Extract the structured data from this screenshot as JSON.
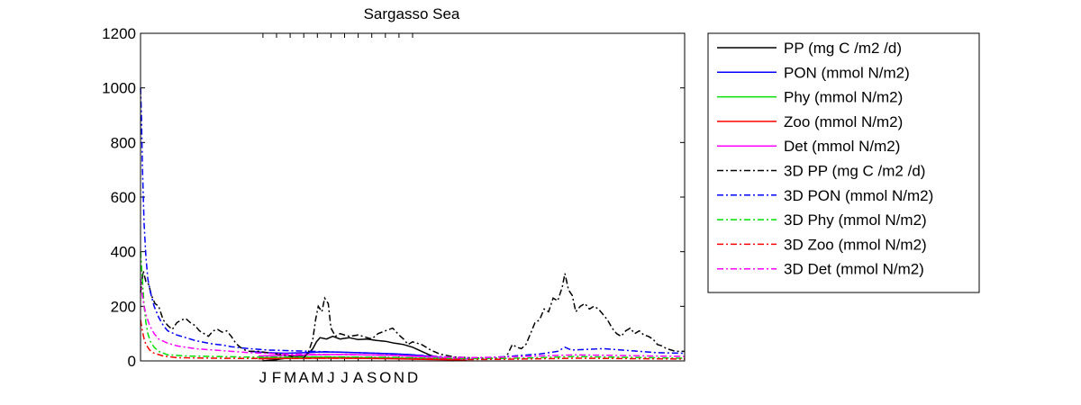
{
  "chart_data": {
    "type": "line",
    "title": "Sargasso Sea",
    "xlabel": "",
    "ylabel": "",
    "ylim": [
      0,
      1200
    ],
    "yticks": [
      0,
      200,
      400,
      600,
      800,
      1000,
      1200
    ],
    "xlim": [
      0,
      600
    ],
    "month_tick_labels": [
      "J",
      "F",
      "M",
      "A",
      "M",
      "J",
      "J",
      "A",
      "S",
      "O",
      "N",
      "D"
    ],
    "month_tick_x": [
      135,
      150,
      165,
      180,
      195,
      210,
      225,
      240,
      255,
      270,
      285,
      300
    ],
    "grid": false,
    "legend_position": "outside-right",
    "series": [
      {
        "name": "PP (mg C /m2 /d)",
        "color": "#000000",
        "dash": "solid",
        "points": [
          [
            135,
            0
          ],
          [
            150,
            5
          ],
          [
            165,
            12
          ],
          [
            180,
            20
          ],
          [
            186,
            30
          ],
          [
            190,
            45
          ],
          [
            194,
            70
          ],
          [
            198,
            85
          ],
          [
            205,
            80
          ],
          [
            212,
            90
          ],
          [
            220,
            80
          ],
          [
            230,
            85
          ],
          [
            240,
            78
          ],
          [
            250,
            80
          ],
          [
            260,
            75
          ],
          [
            270,
            72
          ],
          [
            280,
            65
          ],
          [
            290,
            60
          ],
          [
            300,
            50
          ],
          [
            310,
            35
          ],
          [
            320,
            20
          ],
          [
            330,
            10
          ],
          [
            345,
            0
          ]
        ]
      },
      {
        "name": "PON (mmol N/m2)",
        "color": "#0000FF",
        "dash": "solid",
        "points": [
          [
            120,
            35
          ],
          [
            140,
            30
          ],
          [
            160,
            28
          ],
          [
            180,
            30
          ],
          [
            200,
            33
          ],
          [
            220,
            32
          ],
          [
            240,
            30
          ],
          [
            260,
            28
          ],
          [
            280,
            26
          ],
          [
            300,
            22
          ],
          [
            320,
            16
          ],
          [
            340,
            10
          ],
          [
            360,
            5
          ]
        ]
      },
      {
        "name": "Phy (mmol N/m2)",
        "color": "#00E000",
        "dash": "solid",
        "points": [
          [
            130,
            12
          ],
          [
            160,
            12
          ],
          [
            190,
            14
          ],
          [
            220,
            13
          ],
          [
            250,
            12
          ],
          [
            280,
            11
          ],
          [
            310,
            9
          ],
          [
            340,
            6
          ],
          [
            360,
            4
          ]
        ]
      },
      {
        "name": "Zoo (mmol N/m2)",
        "color": "#FF0000",
        "dash": "solid",
        "points": [
          [
            130,
            8
          ],
          [
            160,
            9
          ],
          [
            190,
            10
          ],
          [
            220,
            10
          ],
          [
            250,
            9
          ],
          [
            280,
            8
          ],
          [
            310,
            6
          ],
          [
            340,
            4
          ],
          [
            360,
            2
          ]
        ]
      },
      {
        "name": "Det (mmol N/m2)",
        "color": "#FF00FF",
        "dash": "solid",
        "points": [
          [
            130,
            18
          ],
          [
            160,
            20
          ],
          [
            190,
            22
          ],
          [
            220,
            24
          ],
          [
            250,
            22
          ],
          [
            280,
            20
          ],
          [
            310,
            15
          ],
          [
            340,
            10
          ],
          [
            360,
            6
          ]
        ]
      },
      {
        "name": "3D PP (mg C /m2 /d)",
        "color": "#000000",
        "dash": "dashdot",
        "points": [
          [
            0,
            250
          ],
          [
            3,
            330
          ],
          [
            6,
            290
          ],
          [
            9,
            280
          ],
          [
            12,
            240
          ],
          [
            16,
            210
          ],
          [
            20,
            200
          ],
          [
            25,
            150
          ],
          [
            30,
            130
          ],
          [
            35,
            115
          ],
          [
            40,
            140
          ],
          [
            45,
            150
          ],
          [
            50,
            155
          ],
          [
            55,
            140
          ],
          [
            60,
            130
          ],
          [
            65,
            110
          ],
          [
            70,
            100
          ],
          [
            75,
            90
          ],
          [
            80,
            110
          ],
          [
            85,
            115
          ],
          [
            90,
            105
          ],
          [
            95,
            110
          ],
          [
            100,
            90
          ],
          [
            105,
            65
          ],
          [
            110,
            50
          ],
          [
            115,
            40
          ],
          [
            120,
            35
          ],
          [
            130,
            35
          ],
          [
            140,
            30
          ],
          [
            150,
            25
          ],
          [
            160,
            20
          ],
          [
            170,
            15
          ],
          [
            180,
            12
          ],
          [
            185,
            30
          ],
          [
            190,
            80
          ],
          [
            193,
            150
          ],
          [
            196,
            200
          ],
          [
            200,
            180
          ],
          [
            203,
            230
          ],
          [
            207,
            210
          ],
          [
            210,
            120
          ],
          [
            215,
            90
          ],
          [
            220,
            100
          ],
          [
            230,
            90
          ],
          [
            240,
            95
          ],
          [
            250,
            85
          ],
          [
            255,
            80
          ],
          [
            262,
            100
          ],
          [
            270,
            110
          ],
          [
            278,
            120
          ],
          [
            285,
            95
          ],
          [
            290,
            80
          ],
          [
            295,
            60
          ],
          [
            300,
            70
          ],
          [
            310,
            60
          ],
          [
            320,
            40
          ],
          [
            330,
            25
          ],
          [
            345,
            15
          ],
          [
            360,
            12
          ],
          [
            380,
            10
          ],
          [
            400,
            10
          ],
          [
            405,
            25
          ],
          [
            410,
            60
          ],
          [
            415,
            50
          ],
          [
            420,
            45
          ],
          [
            425,
            60
          ],
          [
            430,
            100
          ],
          [
            435,
            140
          ],
          [
            440,
            150
          ],
          [
            445,
            190
          ],
          [
            450,
            180
          ],
          [
            455,
            230
          ],
          [
            460,
            220
          ],
          [
            465,
            270
          ],
          [
            468,
            320
          ],
          [
            472,
            260
          ],
          [
            476,
            240
          ],
          [
            480,
            180
          ],
          [
            485,
            200
          ],
          [
            490,
            210
          ],
          [
            495,
            190
          ],
          [
            500,
            200
          ],
          [
            505,
            190
          ],
          [
            510,
            170
          ],
          [
            515,
            150
          ],
          [
            520,
            120
          ],
          [
            525,
            100
          ],
          [
            530,
            90
          ],
          [
            535,
            110
          ],
          [
            540,
            120
          ],
          [
            545,
            100
          ],
          [
            550,
            110
          ],
          [
            555,
            95
          ],
          [
            560,
            90
          ],
          [
            565,
            80
          ],
          [
            570,
            60
          ],
          [
            575,
            55
          ],
          [
            580,
            45
          ],
          [
            585,
            40
          ],
          [
            590,
            35
          ],
          [
            600,
            35
          ]
        ]
      },
      {
        "name": "3D PON (mmol N/m2)",
        "color": "#0000FF",
        "dash": "dashdot",
        "points": [
          [
            0,
            1000
          ],
          [
            1,
            900
          ],
          [
            2,
            720
          ],
          [
            4,
            500
          ],
          [
            6,
            380
          ],
          [
            8,
            300
          ],
          [
            11,
            250
          ],
          [
            15,
            200
          ],
          [
            20,
            160
          ],
          [
            25,
            130
          ],
          [
            30,
            110
          ],
          [
            40,
            95
          ],
          [
            50,
            85
          ],
          [
            60,
            75
          ],
          [
            70,
            68
          ],
          [
            80,
            62
          ],
          [
            90,
            58
          ],
          [
            100,
            52
          ],
          [
            110,
            48
          ],
          [
            120,
            45
          ],
          [
            140,
            40
          ],
          [
            160,
            38
          ],
          [
            180,
            36
          ],
          [
            200,
            34
          ],
          [
            220,
            32
          ],
          [
            240,
            30
          ],
          [
            260,
            28
          ],
          [
            280,
            25
          ],
          [
            300,
            22
          ],
          [
            320,
            18
          ],
          [
            340,
            14
          ],
          [
            360,
            10
          ],
          [
            380,
            12
          ],
          [
            400,
            15
          ],
          [
            420,
            20
          ],
          [
            440,
            25
          ],
          [
            460,
            35
          ],
          [
            468,
            50
          ],
          [
            475,
            40
          ],
          [
            490,
            42
          ],
          [
            510,
            45
          ],
          [
            530,
            40
          ],
          [
            550,
            35
          ],
          [
            570,
            30
          ],
          [
            600,
            28
          ]
        ]
      },
      {
        "name": "3D Phy (mmol N/m2)",
        "color": "#00E000",
        "dash": "dashdot",
        "points": [
          [
            0,
            400
          ],
          [
            2,
            300
          ],
          [
            4,
            200
          ],
          [
            6,
            140
          ],
          [
            8,
            100
          ],
          [
            11,
            70
          ],
          [
            15,
            50
          ],
          [
            20,
            35
          ],
          [
            30,
            22
          ],
          [
            50,
            18
          ],
          [
            80,
            16
          ],
          [
            120,
            14
          ],
          [
            160,
            14
          ],
          [
            200,
            15
          ],
          [
            240,
            14
          ],
          [
            280,
            13
          ],
          [
            320,
            10
          ],
          [
            360,
            8
          ],
          [
            400,
            9
          ],
          [
            440,
            12
          ],
          [
            480,
            16
          ],
          [
            520,
            14
          ],
          [
            560,
            12
          ],
          [
            600,
            10
          ]
        ]
      },
      {
        "name": "3D Zoo (mmol N/m2)",
        "color": "#FF0000",
        "dash": "dashdot",
        "points": [
          [
            0,
            150
          ],
          [
            2,
            110
          ],
          [
            4,
            80
          ],
          [
            6,
            60
          ],
          [
            10,
            40
          ],
          [
            15,
            28
          ],
          [
            25,
            18
          ],
          [
            40,
            12
          ],
          [
            80,
            10
          ],
          [
            120,
            9
          ],
          [
            160,
            9
          ],
          [
            200,
            10
          ],
          [
            240,
            10
          ],
          [
            280,
            9
          ],
          [
            320,
            7
          ],
          [
            360,
            5
          ],
          [
            400,
            6
          ],
          [
            440,
            8
          ],
          [
            480,
            10
          ],
          [
            520,
            9
          ],
          [
            560,
            8
          ],
          [
            600,
            7
          ]
        ]
      },
      {
        "name": "3D Det (mmol N/m2)",
        "color": "#FF00FF",
        "dash": "dashdot",
        "points": [
          [
            0,
            300
          ],
          [
            2,
            240
          ],
          [
            4,
            200
          ],
          [
            6,
            170
          ],
          [
            10,
            130
          ],
          [
            15,
            100
          ],
          [
            20,
            80
          ],
          [
            30,
            65
          ],
          [
            40,
            55
          ],
          [
            50,
            50
          ],
          [
            60,
            45
          ],
          [
            80,
            40
          ],
          [
            100,
            35
          ],
          [
            120,
            30
          ],
          [
            160,
            25
          ],
          [
            200,
            24
          ],
          [
            240,
            22
          ],
          [
            280,
            20
          ],
          [
            320,
            16
          ],
          [
            360,
            12
          ],
          [
            400,
            14
          ],
          [
            440,
            18
          ],
          [
            480,
            22
          ],
          [
            520,
            20
          ],
          [
            560,
            18
          ],
          [
            600,
            16
          ]
        ]
      }
    ]
  }
}
